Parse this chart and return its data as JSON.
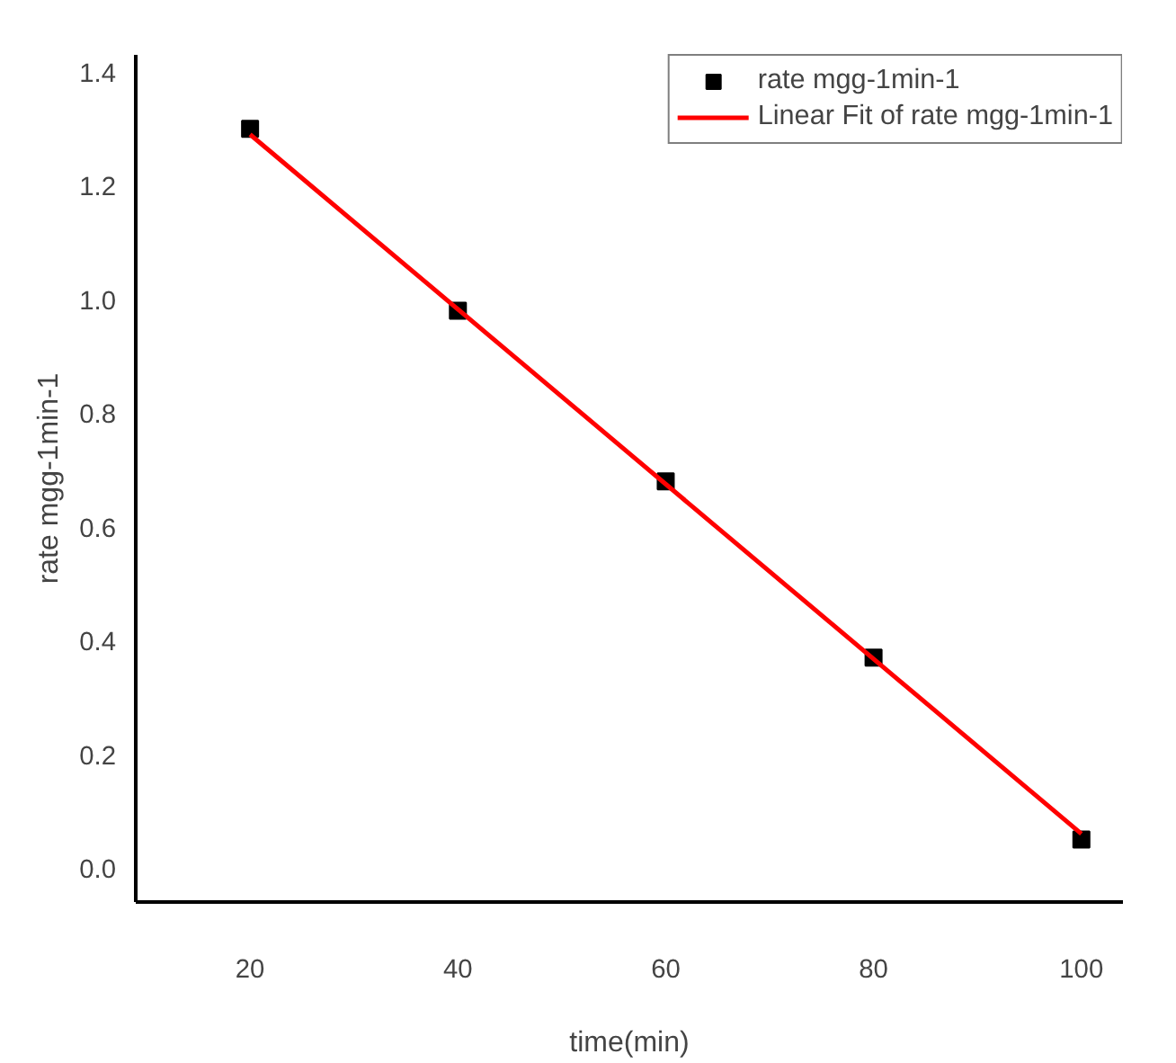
{
  "chart_data": {
    "type": "scatter",
    "xlabel": "time(min)",
    "ylabel": "rate mgg-1min-1",
    "x": [
      20,
      40,
      60,
      80,
      100
    ],
    "series": [
      {
        "name": "rate mgg-1min-1",
        "color": "#000000",
        "marker": "square",
        "values": [
          1.3,
          0.98,
          0.68,
          0.37,
          0.05
        ]
      },
      {
        "name": "Linear Fit of rate mgg-1min-1",
        "type": "line",
        "color": "#ff0000",
        "x": [
          20,
          100
        ],
        "values": [
          1.29,
          0.06
        ]
      }
    ],
    "xlim": [
      9,
      104
    ],
    "ylim": [
      -0.06,
      1.43
    ],
    "xticks": [
      20,
      40,
      60,
      80,
      100
    ],
    "yticks": [
      {
        "value": 0,
        "label": "0.0"
      },
      0.2,
      0.4,
      0.6,
      0.8,
      {
        "value": 1,
        "label": "1.0"
      },
      1.2,
      1.4
    ],
    "grid": false,
    "legend": "top right"
  }
}
